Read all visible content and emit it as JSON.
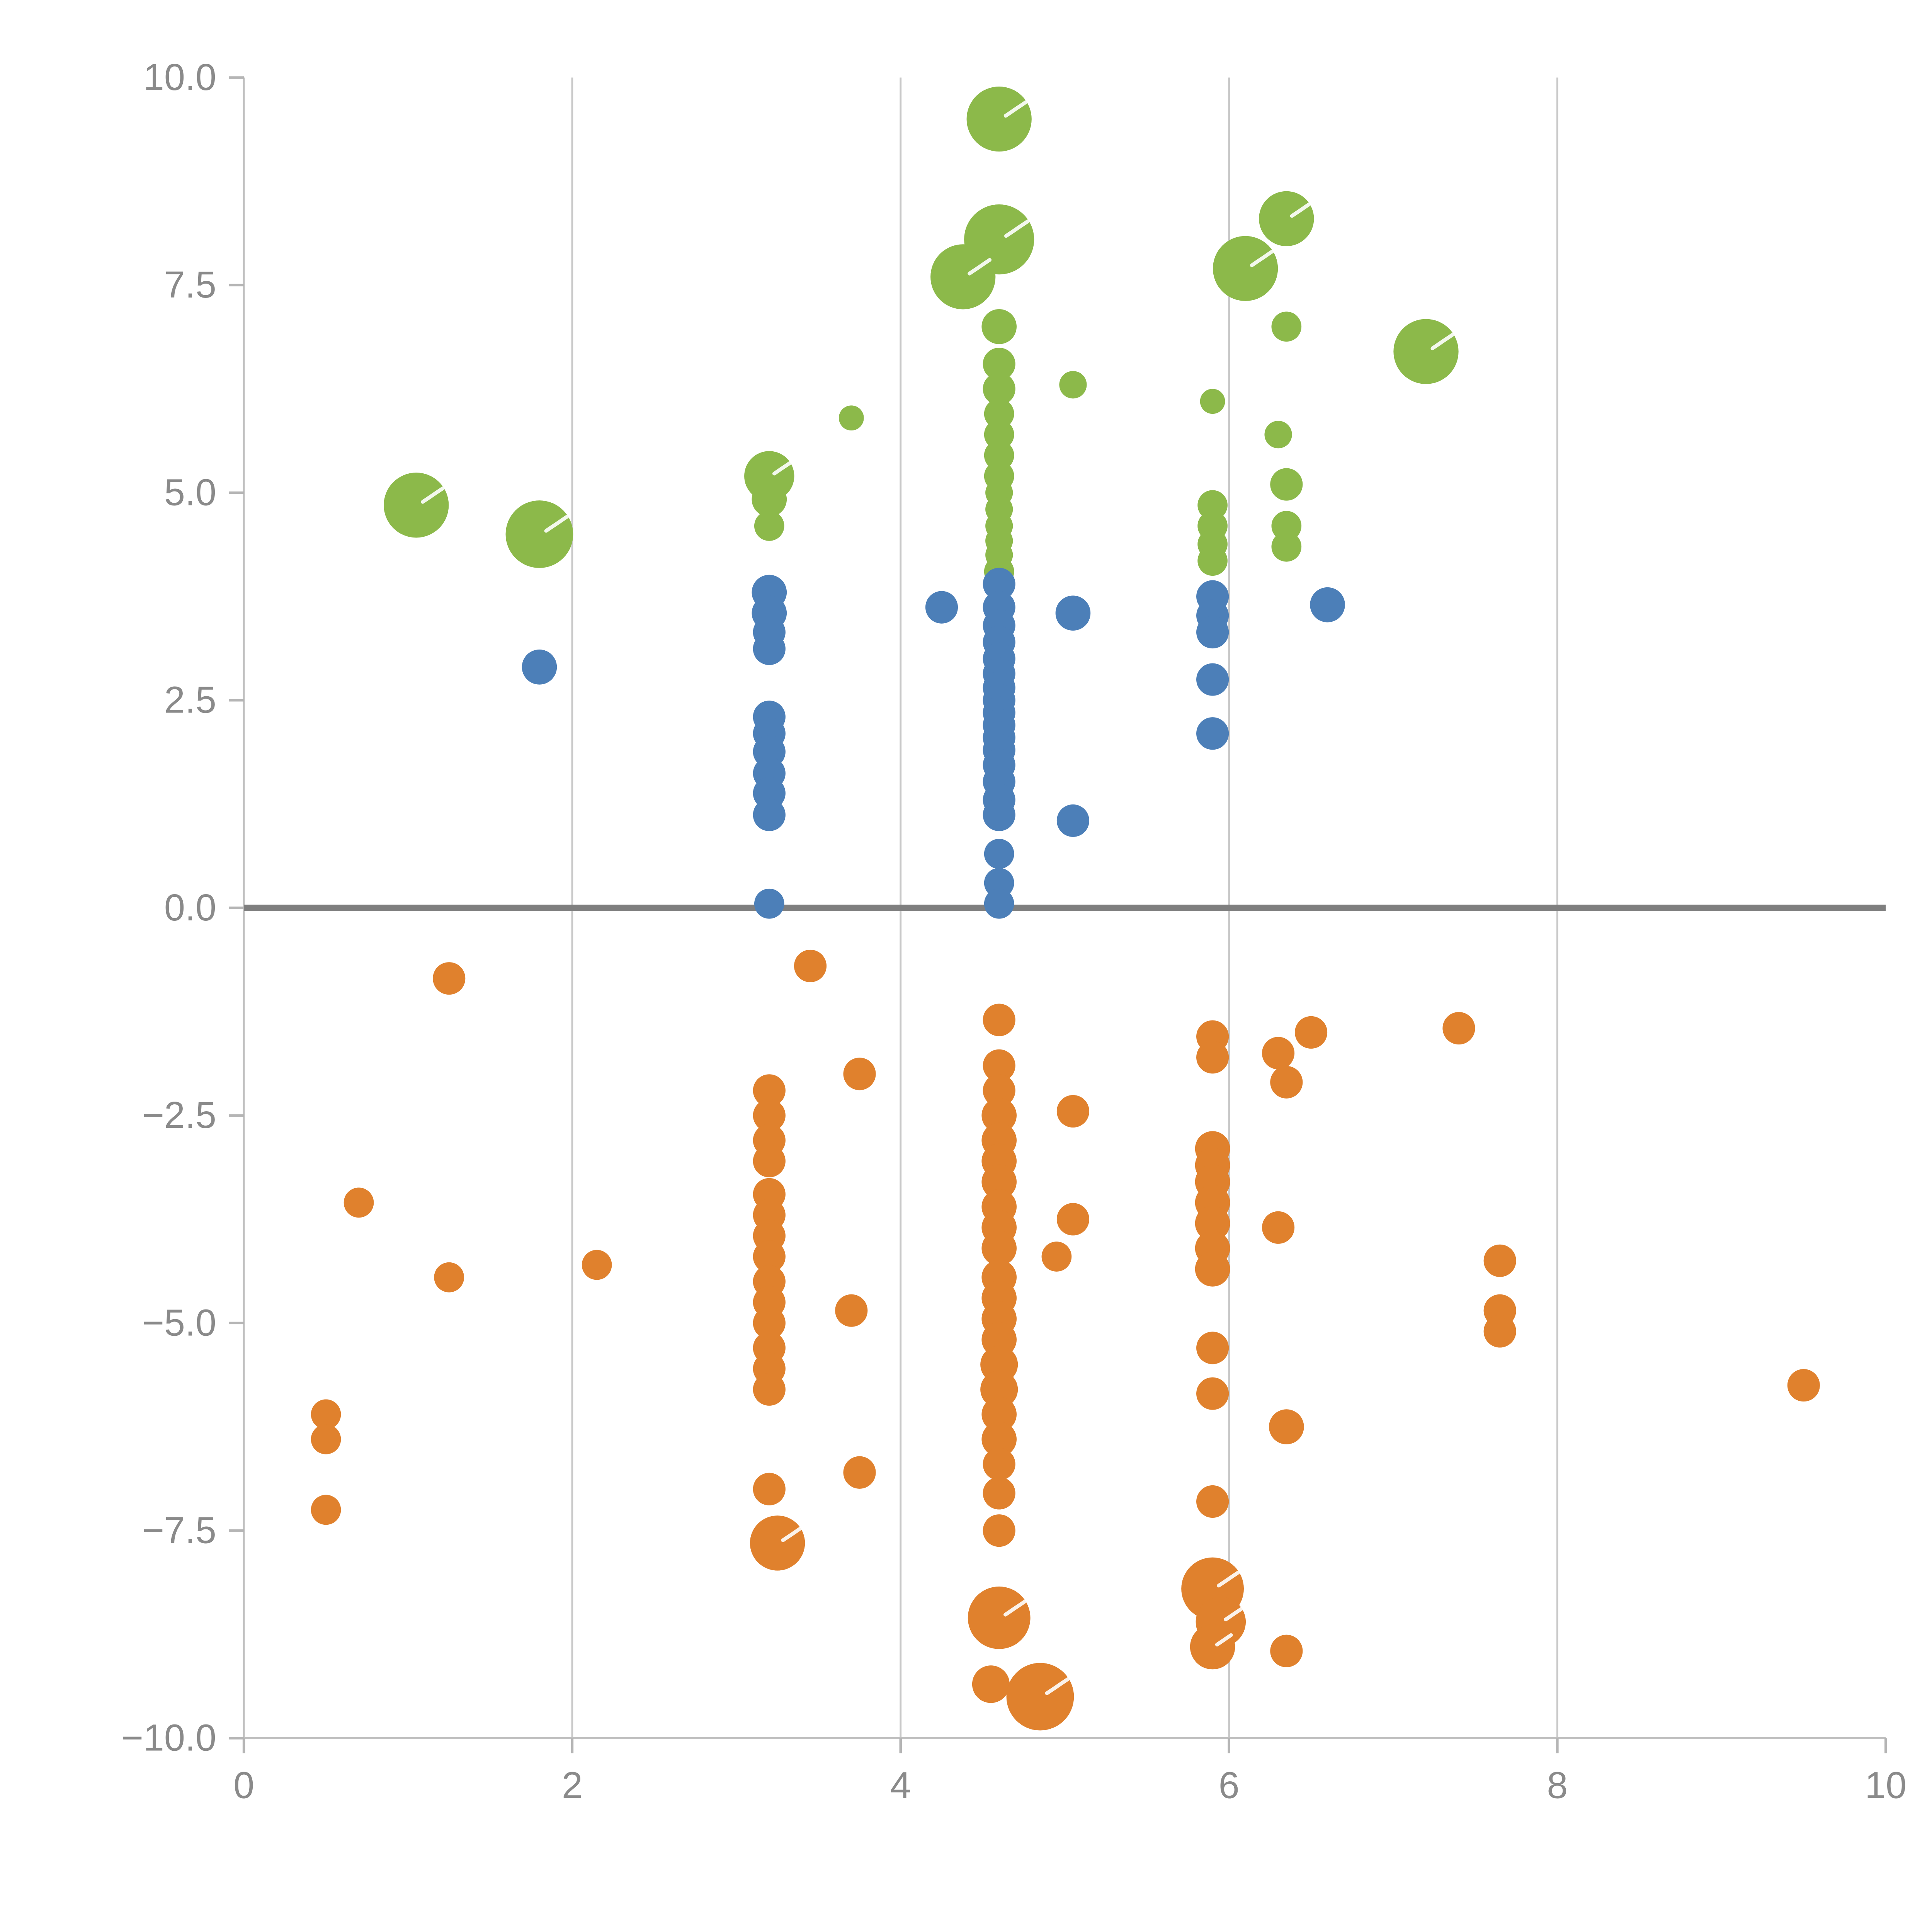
{
  "chart_data": {
    "type": "scatter",
    "title": "",
    "xlabel": "",
    "ylabel": "",
    "xlim": [
      0,
      10
    ],
    "ylim": [
      -10,
      10
    ],
    "x_ticks": [
      0,
      2,
      4,
      6,
      8,
      10
    ],
    "x_tick_labels": [
      "0",
      "2",
      "4",
      "6",
      "8",
      "10"
    ],
    "y_ticks": [
      10.0,
      7.5,
      5.0,
      2.5,
      0.0,
      -2.5,
      -5.0,
      -7.5,
      -10.0
    ],
    "y_tick_labels": [
      "10.0",
      "7.5",
      "5.0",
      "2.5",
      "0.0",
      "−2.5",
      "−5.0",
      "−7.5",
      "−10.0"
    ],
    "grid": "vertical gridlines at x = 2, 4, 6, 8; bold horizontal reference line at y = 0",
    "legend": null,
    "colors": {
      "grid": "#c9c9c9",
      "spine": "#c0c0c0",
      "tick": "#b5b5b5",
      "zero_line": "#7f7f7f",
      "tick_label": "#8a8a8a",
      "background": "#ffffff",
      "bubble_highlight": "#ffffff"
    },
    "series": [
      {
        "name": "green",
        "color": "#8cb94a",
        "points": [
          [
            4.6,
            9.5,
            26
          ],
          [
            4.6,
            8.05,
            28
          ],
          [
            4.38,
            7.6,
            26
          ],
          [
            4.6,
            7.0,
            14
          ],
          [
            4.6,
            6.55,
            13
          ],
          [
            4.6,
            6.25,
            13
          ],
          [
            4.6,
            5.95,
            12
          ],
          [
            4.6,
            5.7,
            12
          ],
          [
            4.6,
            5.45,
            12
          ],
          [
            4.6,
            5.2,
            12
          ],
          [
            4.6,
            5.0,
            11
          ],
          [
            4.6,
            4.8,
            11
          ],
          [
            4.6,
            4.6,
            11
          ],
          [
            4.6,
            4.42,
            11
          ],
          [
            4.6,
            4.25,
            11
          ],
          [
            4.6,
            4.05,
            12
          ],
          [
            5.05,
            6.3,
            11
          ],
          [
            3.7,
            5.9,
            10
          ],
          [
            3.2,
            5.2,
            20
          ],
          [
            3.2,
            4.92,
            14
          ],
          [
            3.2,
            4.6,
            12
          ],
          [
            1.05,
            4.85,
            26
          ],
          [
            1.8,
            4.5,
            27
          ],
          [
            5.9,
            6.1,
            10
          ],
          [
            6.3,
            5.7,
            11
          ],
          [
            6.35,
            5.1,
            13
          ],
          [
            5.9,
            4.85,
            12
          ],
          [
            5.9,
            4.6,
            12
          ],
          [
            5.9,
            4.38,
            12
          ],
          [
            5.9,
            4.18,
            12
          ],
          [
            6.35,
            4.6,
            12
          ],
          [
            6.35,
            4.35,
            12
          ],
          [
            6.35,
            8.3,
            22
          ],
          [
            6.1,
            7.7,
            26
          ],
          [
            6.35,
            7.0,
            12
          ],
          [
            7.2,
            6.7,
            26
          ]
        ]
      },
      {
        "name": "blue",
        "color": "#4c7fb8",
        "points": [
          [
            1.8,
            2.9,
            14
          ],
          [
            3.2,
            3.8,
            14
          ],
          [
            3.2,
            3.55,
            14
          ],
          [
            3.2,
            3.32,
            13
          ],
          [
            3.2,
            3.12,
            13
          ],
          [
            3.2,
            2.3,
            13
          ],
          [
            3.2,
            2.1,
            13
          ],
          [
            3.2,
            1.88,
            13
          ],
          [
            3.2,
            1.62,
            13
          ],
          [
            3.2,
            1.38,
            13
          ],
          [
            3.2,
            1.12,
            13
          ],
          [
            3.2,
            0.05,
            12
          ],
          [
            4.25,
            3.62,
            13
          ],
          [
            4.6,
            3.9,
            13
          ],
          [
            4.6,
            3.62,
            13
          ],
          [
            4.6,
            3.4,
            13
          ],
          [
            4.6,
            3.2,
            13
          ],
          [
            4.6,
            3.0,
            13
          ],
          [
            4.6,
            2.82,
            13
          ],
          [
            4.6,
            2.65,
            13
          ],
          [
            4.6,
            2.5,
            13
          ],
          [
            4.6,
            2.35,
            13
          ],
          [
            4.6,
            2.2,
            13
          ],
          [
            4.6,
            2.05,
            13
          ],
          [
            4.6,
            1.9,
            13
          ],
          [
            4.6,
            1.72,
            13
          ],
          [
            4.6,
            1.52,
            13
          ],
          [
            4.6,
            1.3,
            13
          ],
          [
            4.6,
            1.12,
            13
          ],
          [
            4.6,
            0.65,
            12
          ],
          [
            4.6,
            0.3,
            12
          ],
          [
            4.6,
            0.05,
            12
          ],
          [
            5.05,
            3.55,
            14
          ],
          [
            5.05,
            1.05,
            13
          ],
          [
            5.9,
            3.75,
            13
          ],
          [
            5.9,
            3.52,
            13
          ],
          [
            5.9,
            3.32,
            13
          ],
          [
            5.9,
            2.75,
            13
          ],
          [
            5.9,
            2.1,
            13
          ],
          [
            6.6,
            3.65,
            14
          ]
        ]
      },
      {
        "name": "orange",
        "color": "#e0812d",
        "points": [
          [
            1.25,
            -0.85,
            13
          ],
          [
            3.45,
            -0.7,
            13
          ],
          [
            0.7,
            -3.55,
            12
          ],
          [
            1.25,
            -4.45,
            12
          ],
          [
            2.15,
            -4.3,
            12
          ],
          [
            0.5,
            -6.1,
            12
          ],
          [
            0.5,
            -6.4,
            12
          ],
          [
            0.5,
            -7.25,
            12
          ],
          [
            3.2,
            -2.2,
            13
          ],
          [
            3.2,
            -2.5,
            13
          ],
          [
            3.2,
            -2.8,
            13
          ],
          [
            3.2,
            -3.05,
            13
          ],
          [
            3.2,
            -3.45,
            13
          ],
          [
            3.2,
            -3.7,
            13
          ],
          [
            3.2,
            -3.95,
            13
          ],
          [
            3.2,
            -4.2,
            13
          ],
          [
            3.2,
            -4.5,
            13
          ],
          [
            3.2,
            -4.75,
            13
          ],
          [
            3.2,
            -5.0,
            13
          ],
          [
            3.2,
            -5.3,
            13
          ],
          [
            3.2,
            -5.55,
            13
          ],
          [
            3.2,
            -5.8,
            13
          ],
          [
            3.2,
            -7.0,
            13
          ],
          [
            3.25,
            -7.65,
            22
          ],
          [
            3.75,
            -2.0,
            13
          ],
          [
            3.7,
            -4.85,
            13
          ],
          [
            3.75,
            -6.8,
            13
          ],
          [
            4.6,
            -1.35,
            13
          ],
          [
            4.6,
            -1.9,
            13
          ],
          [
            4.6,
            -2.2,
            13
          ],
          [
            4.6,
            -2.5,
            14
          ],
          [
            4.6,
            -2.8,
            14
          ],
          [
            4.6,
            -3.05,
            14
          ],
          [
            4.6,
            -3.3,
            14
          ],
          [
            4.6,
            -3.6,
            14
          ],
          [
            4.6,
            -3.85,
            14
          ],
          [
            4.6,
            -4.1,
            14
          ],
          [
            4.6,
            -4.45,
            14
          ],
          [
            4.6,
            -4.7,
            14
          ],
          [
            4.6,
            -4.95,
            14
          ],
          [
            4.6,
            -5.2,
            14
          ],
          [
            4.6,
            -5.5,
            15
          ],
          [
            4.6,
            -5.8,
            15
          ],
          [
            4.6,
            -6.1,
            14
          ],
          [
            4.6,
            -6.4,
            14
          ],
          [
            4.6,
            -6.7,
            13
          ],
          [
            4.6,
            -7.05,
            13
          ],
          [
            4.6,
            -7.5,
            13
          ],
          [
            4.6,
            -8.55,
            25
          ],
          [
            4.55,
            -9.35,
            15
          ],
          [
            4.85,
            -9.5,
            27
          ],
          [
            5.05,
            -2.45,
            13
          ],
          [
            5.05,
            -3.75,
            13
          ],
          [
            4.95,
            -4.2,
            12
          ],
          [
            5.9,
            -1.55,
            13
          ],
          [
            5.9,
            -1.8,
            13
          ],
          [
            5.9,
            -2.9,
            14
          ],
          [
            5.9,
            -3.1,
            14
          ],
          [
            5.9,
            -3.3,
            14
          ],
          [
            5.9,
            -3.55,
            14
          ],
          [
            5.9,
            -3.8,
            14
          ],
          [
            5.9,
            -4.1,
            14
          ],
          [
            5.9,
            -4.35,
            14
          ],
          [
            5.9,
            -5.3,
            13
          ],
          [
            5.9,
            -5.85,
            13
          ],
          [
            5.9,
            -7.15,
            13
          ],
          [
            5.9,
            -8.2,
            25
          ],
          [
            5.95,
            -8.6,
            20
          ],
          [
            5.9,
            -8.9,
            18
          ],
          [
            6.3,
            -1.75,
            13
          ],
          [
            6.35,
            -2.1,
            13
          ],
          [
            6.5,
            -1.5,
            13
          ],
          [
            6.3,
            -3.85,
            13
          ],
          [
            6.35,
            -6.25,
            14
          ],
          [
            6.35,
            -8.95,
            13
          ],
          [
            7.4,
            -1.45,
            13
          ],
          [
            7.65,
            -4.25,
            13
          ],
          [
            7.65,
            -4.85,
            13
          ],
          [
            7.65,
            -5.1,
            13
          ],
          [
            9.5,
            -5.75,
            13
          ]
        ]
      }
    ],
    "layout": {
      "grid_x_values": [
        2,
        4,
        6,
        8
      ],
      "zero_line_y": 0,
      "legend_position": "none"
    }
  }
}
